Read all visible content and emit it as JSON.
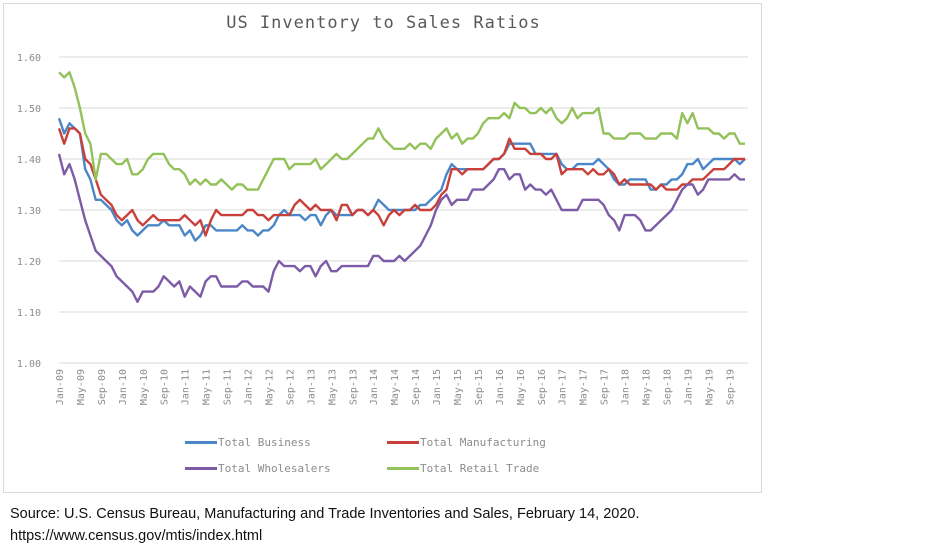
{
  "chart_data": {
    "type": "line",
    "title": "US Inventory to Sales Ratios",
    "xlabel": "",
    "ylabel": "",
    "ylim": [
      1.0,
      1.6
    ],
    "y_ticks": [
      "1.00",
      "1.10",
      "1.20",
      "1.30",
      "1.40",
      "1.50",
      "1.60"
    ],
    "x_start": "Jan-09",
    "x_end": "Dec-19",
    "x_tick_labels": [
      "Jan-09",
      "May-09",
      "Sep-09",
      "Jan-10",
      "May-10",
      "Sep-10",
      "Jan-11",
      "May-11",
      "Sep-11",
      "Jan-12",
      "May-12",
      "Sep-12",
      "Jan-13",
      "May-13",
      "Sep-13",
      "Jan-14",
      "May-14",
      "Sep-14",
      "Jan-15",
      "May-15",
      "Sep-15",
      "Jan-16",
      "May-16",
      "Sep-16",
      "Jan-17",
      "May-17",
      "Sep-17",
      "Jan-18",
      "May-18",
      "Sep-18",
      "Jan-19",
      "May-19",
      "Sep-19"
    ],
    "grid": true,
    "legend_placement": "bottom",
    "series": [
      {
        "name": "Total Business",
        "color": "#4a86c8",
        "values": [
          1.48,
          1.45,
          1.47,
          1.46,
          1.45,
          1.38,
          1.36,
          1.32,
          1.32,
          1.31,
          1.3,
          1.28,
          1.27,
          1.28,
          1.26,
          1.25,
          1.26,
          1.27,
          1.27,
          1.27,
          1.28,
          1.27,
          1.27,
          1.27,
          1.25,
          1.26,
          1.24,
          1.25,
          1.27,
          1.27,
          1.26,
          1.26,
          1.26,
          1.26,
          1.26,
          1.27,
          1.26,
          1.26,
          1.25,
          1.26,
          1.26,
          1.27,
          1.29,
          1.3,
          1.29,
          1.29,
          1.29,
          1.28,
          1.29,
          1.29,
          1.27,
          1.29,
          1.3,
          1.29,
          1.29,
          1.29,
          1.29,
          1.3,
          1.3,
          1.29,
          1.3,
          1.32,
          1.31,
          1.3,
          1.3,
          1.3,
          1.3,
          1.3,
          1.3,
          1.31,
          1.31,
          1.32,
          1.33,
          1.34,
          1.37,
          1.39,
          1.38,
          1.38,
          1.38,
          1.38,
          1.38,
          1.38,
          1.39,
          1.4,
          1.4,
          1.41,
          1.43,
          1.43,
          1.43,
          1.43,
          1.43,
          1.41,
          1.41,
          1.41,
          1.41,
          1.41,
          1.39,
          1.38,
          1.38,
          1.39,
          1.39,
          1.39,
          1.39,
          1.4,
          1.39,
          1.38,
          1.36,
          1.35,
          1.35,
          1.36,
          1.36,
          1.36,
          1.36,
          1.34,
          1.34,
          1.35,
          1.35,
          1.36,
          1.36,
          1.37,
          1.39,
          1.39,
          1.4,
          1.38,
          1.39,
          1.4,
          1.4,
          1.4,
          1.4,
          1.4,
          1.39,
          1.4
        ]
      },
      {
        "name": "Total Manufacturing",
        "color": "#c9403a",
        "values": [
          1.46,
          1.43,
          1.46,
          1.46,
          1.45,
          1.4,
          1.39,
          1.36,
          1.33,
          1.32,
          1.31,
          1.29,
          1.28,
          1.29,
          1.3,
          1.28,
          1.27,
          1.28,
          1.29,
          1.28,
          1.28,
          1.28,
          1.28,
          1.28,
          1.29,
          1.28,
          1.27,
          1.28,
          1.25,
          1.28,
          1.3,
          1.29,
          1.29,
          1.29,
          1.29,
          1.29,
          1.3,
          1.3,
          1.29,
          1.29,
          1.28,
          1.29,
          1.29,
          1.29,
          1.29,
          1.31,
          1.32,
          1.31,
          1.3,
          1.31,
          1.3,
          1.3,
          1.3,
          1.28,
          1.31,
          1.31,
          1.29,
          1.3,
          1.3,
          1.29,
          1.3,
          1.29,
          1.27,
          1.29,
          1.3,
          1.29,
          1.3,
          1.3,
          1.31,
          1.3,
          1.3,
          1.3,
          1.31,
          1.33,
          1.34,
          1.38,
          1.38,
          1.37,
          1.38,
          1.38,
          1.38,
          1.38,
          1.39,
          1.4,
          1.4,
          1.41,
          1.44,
          1.42,
          1.42,
          1.42,
          1.41,
          1.41,
          1.41,
          1.4,
          1.4,
          1.41,
          1.37,
          1.38,
          1.38,
          1.38,
          1.38,
          1.37,
          1.38,
          1.37,
          1.37,
          1.38,
          1.37,
          1.35,
          1.36,
          1.35,
          1.35,
          1.35,
          1.35,
          1.35,
          1.34,
          1.35,
          1.34,
          1.34,
          1.34,
          1.35,
          1.35,
          1.36,
          1.36,
          1.36,
          1.37,
          1.38,
          1.38,
          1.38,
          1.39,
          1.4,
          1.4,
          1.4
        ]
      },
      {
        "name": "Total Wholesalers",
        "color": "#7d5ba6",
        "values": [
          1.41,
          1.37,
          1.39,
          1.36,
          1.32,
          1.28,
          1.25,
          1.22,
          1.21,
          1.2,
          1.19,
          1.17,
          1.16,
          1.15,
          1.14,
          1.12,
          1.14,
          1.14,
          1.14,
          1.15,
          1.17,
          1.16,
          1.15,
          1.16,
          1.13,
          1.15,
          1.14,
          1.13,
          1.16,
          1.17,
          1.17,
          1.15,
          1.15,
          1.15,
          1.15,
          1.16,
          1.16,
          1.15,
          1.15,
          1.15,
          1.14,
          1.18,
          1.2,
          1.19,
          1.19,
          1.19,
          1.18,
          1.19,
          1.19,
          1.17,
          1.19,
          1.2,
          1.18,
          1.18,
          1.19,
          1.19,
          1.19,
          1.19,
          1.19,
          1.19,
          1.21,
          1.21,
          1.2,
          1.2,
          1.2,
          1.21,
          1.2,
          1.21,
          1.22,
          1.23,
          1.25,
          1.27,
          1.3,
          1.32,
          1.33,
          1.31,
          1.32,
          1.32,
          1.32,
          1.34,
          1.34,
          1.34,
          1.35,
          1.36,
          1.38,
          1.38,
          1.36,
          1.37,
          1.37,
          1.34,
          1.35,
          1.34,
          1.34,
          1.33,
          1.34,
          1.32,
          1.3,
          1.3,
          1.3,
          1.3,
          1.32,
          1.32,
          1.32,
          1.32,
          1.31,
          1.29,
          1.28,
          1.26,
          1.29,
          1.29,
          1.29,
          1.28,
          1.26,
          1.26,
          1.27,
          1.28,
          1.29,
          1.3,
          1.32,
          1.34,
          1.35,
          1.35,
          1.33,
          1.34,
          1.36,
          1.36,
          1.36,
          1.36,
          1.36,
          1.37,
          1.36,
          1.36
        ]
      },
      {
        "name": "Total Retail Trade",
        "color": "#93c15a",
        "values": [
          1.57,
          1.56,
          1.57,
          1.54,
          1.5,
          1.45,
          1.43,
          1.36,
          1.41,
          1.41,
          1.4,
          1.39,
          1.39,
          1.4,
          1.37,
          1.37,
          1.38,
          1.4,
          1.41,
          1.41,
          1.41,
          1.39,
          1.38,
          1.38,
          1.37,
          1.35,
          1.36,
          1.35,
          1.36,
          1.35,
          1.35,
          1.36,
          1.35,
          1.34,
          1.35,
          1.35,
          1.34,
          1.34,
          1.34,
          1.36,
          1.38,
          1.4,
          1.4,
          1.4,
          1.38,
          1.39,
          1.39,
          1.39,
          1.39,
          1.4,
          1.38,
          1.39,
          1.4,
          1.41,
          1.4,
          1.4,
          1.41,
          1.42,
          1.43,
          1.44,
          1.44,
          1.46,
          1.44,
          1.43,
          1.42,
          1.42,
          1.42,
          1.43,
          1.42,
          1.43,
          1.43,
          1.42,
          1.44,
          1.45,
          1.46,
          1.44,
          1.45,
          1.43,
          1.44,
          1.44,
          1.45,
          1.47,
          1.48,
          1.48,
          1.48,
          1.49,
          1.48,
          1.51,
          1.5,
          1.5,
          1.49,
          1.49,
          1.5,
          1.49,
          1.5,
          1.48,
          1.47,
          1.48,
          1.5,
          1.48,
          1.49,
          1.49,
          1.49,
          1.5,
          1.45,
          1.45,
          1.44,
          1.44,
          1.44,
          1.45,
          1.45,
          1.45,
          1.44,
          1.44,
          1.44,
          1.45,
          1.45,
          1.45,
          1.44,
          1.49,
          1.47,
          1.49,
          1.46,
          1.46,
          1.46,
          1.45,
          1.45,
          1.44,
          1.45,
          1.45,
          1.43,
          1.43
        ]
      }
    ]
  },
  "source": {
    "line1": "Source: U.S. Census Bureau, Manufacturing and Trade Inventories and Sales, February 14, 2020.",
    "line2": "https://www.census.gov/mtis/index.html"
  }
}
